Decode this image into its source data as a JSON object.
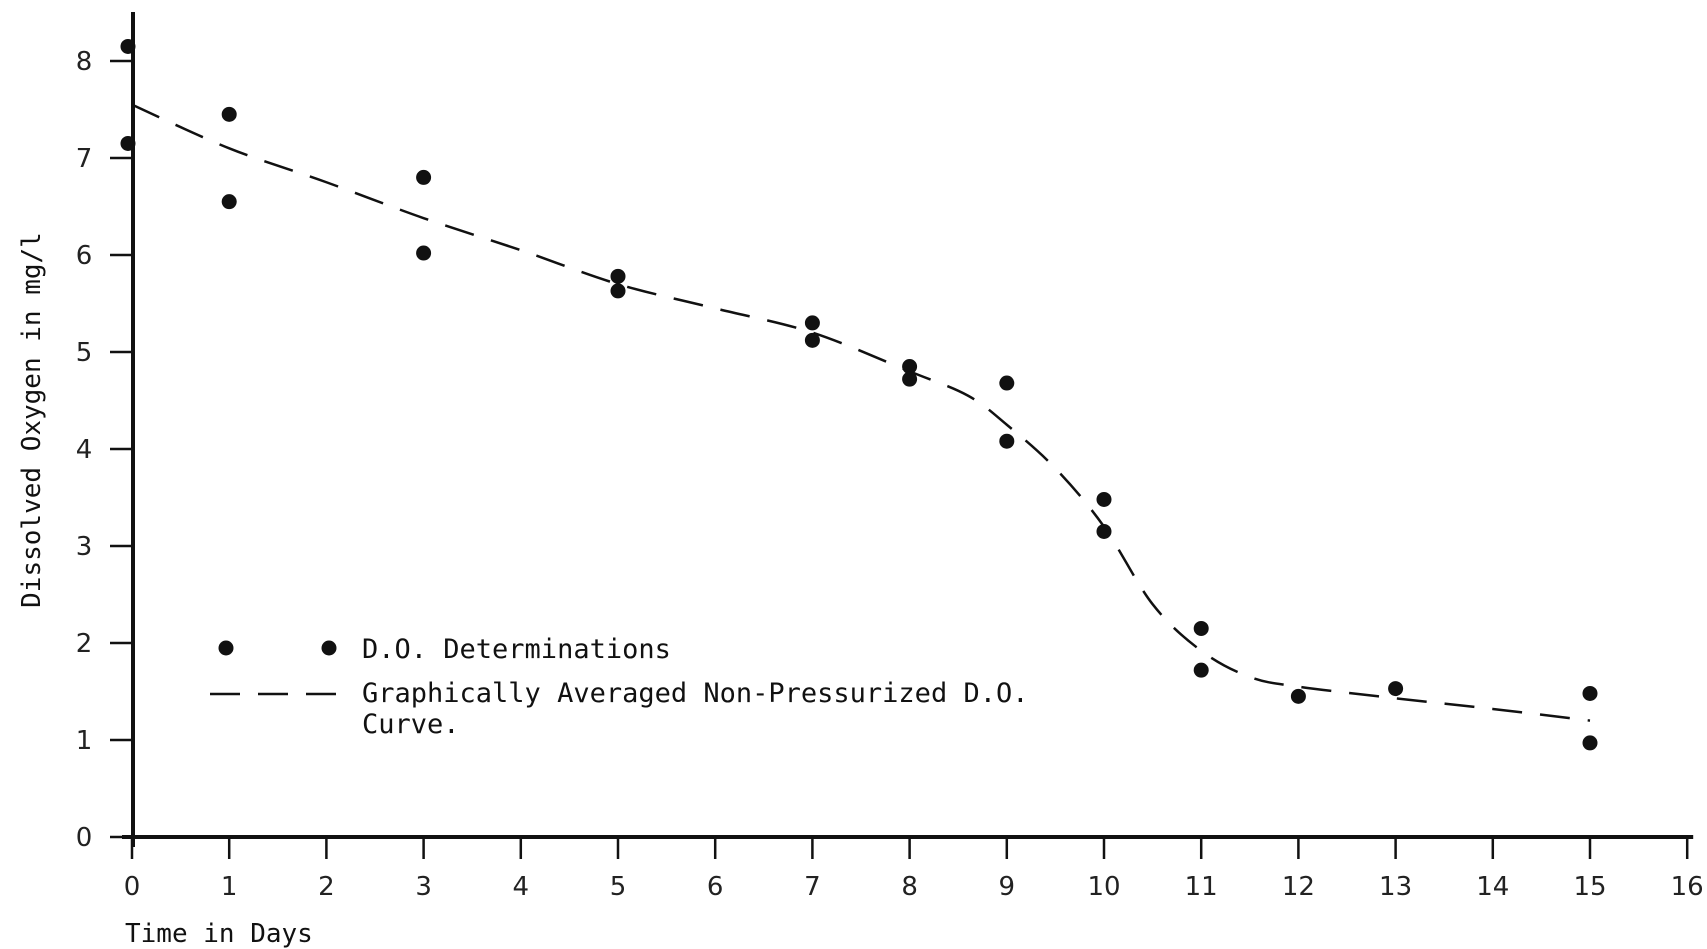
{
  "chart_data": {
    "type": "scatter",
    "title": "",
    "xlabel": "Time in Days",
    "ylabel": "Dissolved Oxygen in mg/l",
    "xlim": [
      0,
      16
    ],
    "ylim": [
      0,
      8
    ],
    "x_ticks": [
      0,
      1,
      2,
      3,
      4,
      5,
      6,
      7,
      8,
      9,
      10,
      11,
      12,
      13,
      14,
      15,
      16
    ],
    "y_ticks": [
      0,
      1,
      2,
      3,
      4,
      5,
      6,
      7,
      8
    ],
    "grid": false,
    "legend": {
      "placement": "lower-left",
      "entries": [
        {
          "label": "D.O. Determinations",
          "marker": "dot"
        },
        {
          "label": "Graphically Averaged Non-Pressurized D.O.",
          "label_line2": "Curve.",
          "marker": "dashed-line"
        }
      ]
    },
    "series": [
      {
        "name": "D.O. Determinations",
        "kind": "scatter",
        "points": [
          [
            0,
            8.15
          ],
          [
            0,
            7.15
          ],
          [
            1,
            7.45
          ],
          [
            1,
            6.55
          ],
          [
            3,
            6.8
          ],
          [
            3,
            6.02
          ],
          [
            5,
            5.78
          ],
          [
            5,
            5.63
          ],
          [
            7,
            5.3
          ],
          [
            7,
            5.12
          ],
          [
            8,
            4.85
          ],
          [
            8,
            4.72
          ],
          [
            9,
            4.68
          ],
          [
            9,
            4.08
          ],
          [
            10,
            3.48
          ],
          [
            10,
            3.15
          ],
          [
            11,
            2.15
          ],
          [
            11,
            1.72
          ],
          [
            12,
            1.45
          ],
          [
            13,
            1.53
          ],
          [
            15,
            1.48
          ],
          [
            15,
            0.97
          ]
        ]
      },
      {
        "name": "Graphically Averaged Non-Pressurized D.O. Curve.",
        "kind": "line",
        "style": "dashed",
        "points": [
          [
            0,
            7.55
          ],
          [
            1,
            7.1
          ],
          [
            2,
            6.75
          ],
          [
            3,
            6.38
          ],
          [
            4,
            6.05
          ],
          [
            5,
            5.7
          ],
          [
            6,
            5.45
          ],
          [
            7,
            5.2
          ],
          [
            8,
            4.8
          ],
          [
            8.6,
            4.55
          ],
          [
            9,
            4.25
          ],
          [
            9.5,
            3.8
          ],
          [
            10,
            3.2
          ],
          [
            10.5,
            2.4
          ],
          [
            11,
            1.92
          ],
          [
            11.5,
            1.65
          ],
          [
            12,
            1.55
          ],
          [
            13,
            1.43
          ],
          [
            14,
            1.32
          ],
          [
            15,
            1.2
          ]
        ]
      }
    ]
  }
}
